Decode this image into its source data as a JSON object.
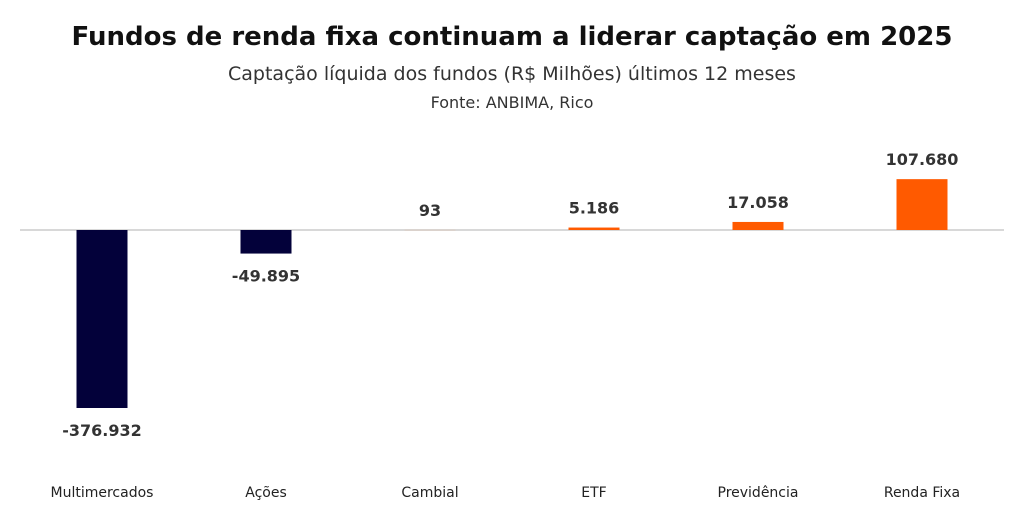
{
  "chart_data": {
    "type": "bar",
    "title": "Fundos de renda fixa continuam a liderar captação em 2025",
    "subtitle": "Captação líquida dos fundos (R$ Milhões) últimos 12 meses",
    "source": "Fonte: ANBIMA, Rico",
    "xlabel": "",
    "ylabel": "",
    "grid": false,
    "legend": "none",
    "ylim": [
      -376932,
      107680
    ],
    "categories": [
      "Multimercados",
      "Ações",
      "Cambial",
      "ETF",
      "Previdência",
      "Renda Fixa"
    ],
    "values": [
      -376932,
      -49895,
      93,
      5186,
      17058,
      107680
    ],
    "value_labels": [
      "-376.932",
      "-49.895",
      "93",
      "5.186",
      "17.058",
      "107.680"
    ],
    "colors": {
      "negative": "#03013a",
      "positive": "#ff5a00",
      "baseline": "#cccccc"
    }
  }
}
